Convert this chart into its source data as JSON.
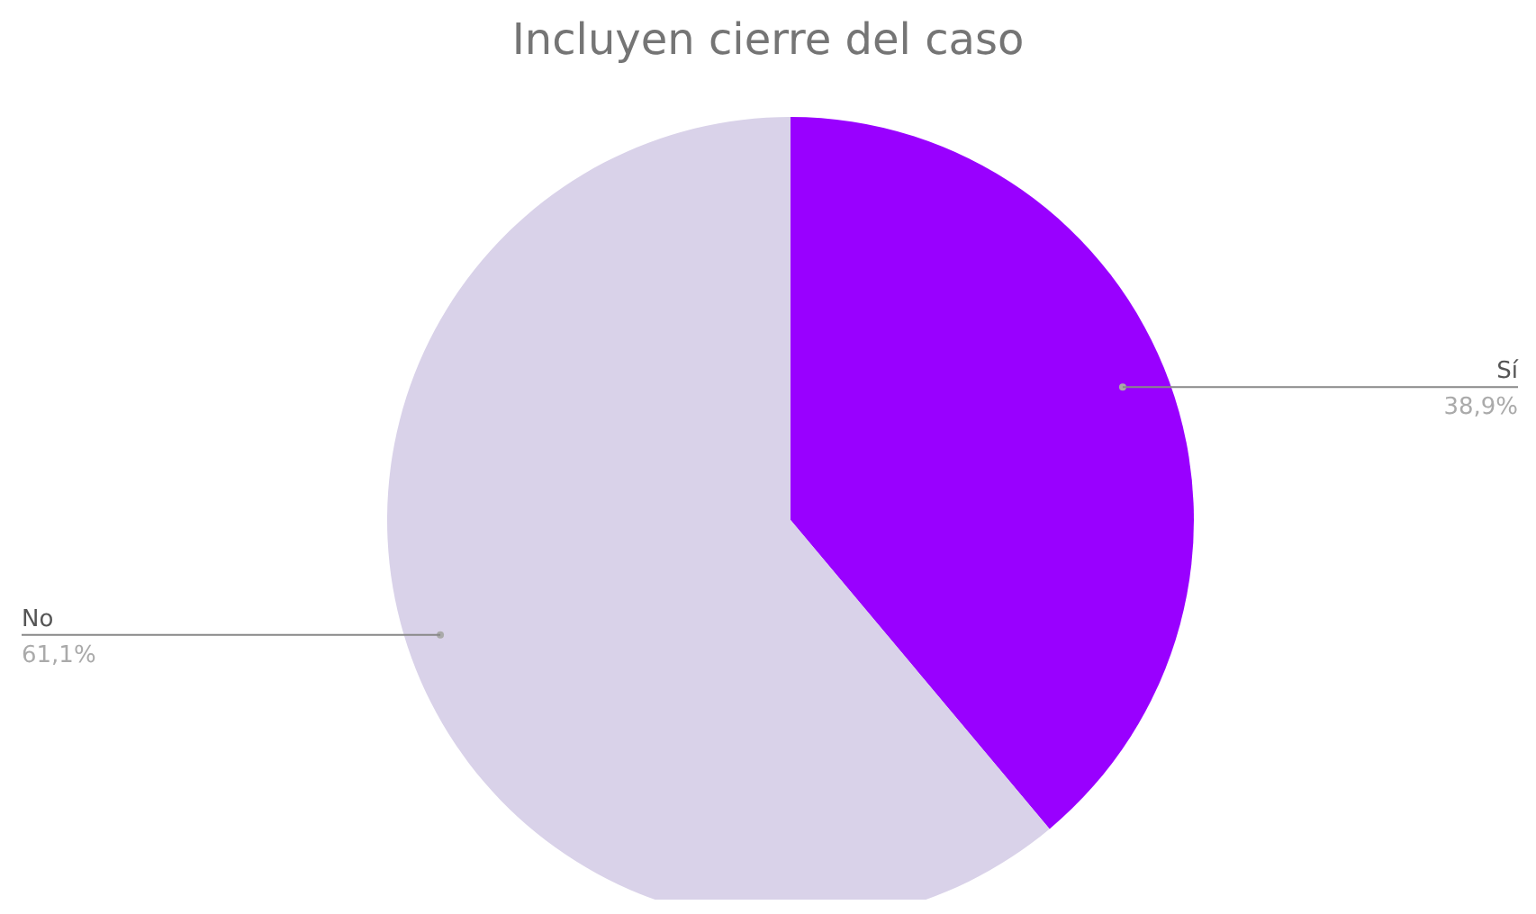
{
  "chart_data": {
    "type": "pie",
    "title": "Incluyen cierre del caso",
    "categories": [
      "Sí",
      "No"
    ],
    "values": [
      38.9,
      61.1
    ],
    "colors": [
      "#9900ff",
      "#d9d2e9"
    ],
    "value_labels": [
      "38,9%",
      "61,1%"
    ],
    "legend": false
  }
}
